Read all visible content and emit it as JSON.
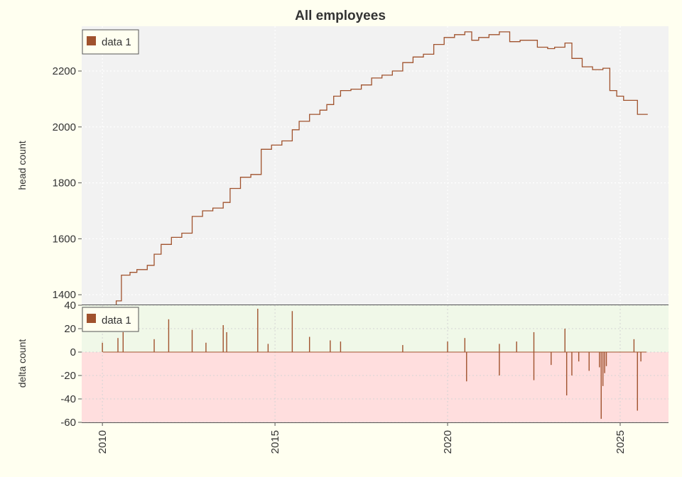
{
  "chart_data": {
    "type": "line",
    "title": "All employees",
    "x_ticks": [
      2010,
      2015,
      2020,
      2025
    ],
    "xlim": [
      2009.4,
      2026.4
    ],
    "colors": {
      "series": "#a0522d",
      "upper_bg": "#f2f2f2",
      "delta_pos_bg": "#f0f8e8",
      "delta_neg_bg": "#ffdede",
      "page_bg": "#fffff0",
      "grid": "#ffffff"
    },
    "grid": true,
    "panels": [
      {
        "id": "head",
        "ylabel": "head count",
        "ylim": [
          1365,
          2360
        ],
        "y_ticks": [
          1400,
          1600,
          1800,
          2000,
          2200
        ],
        "legend": {
          "label": "data 1",
          "position": "top-left"
        },
        "series": [
          {
            "style": "step",
            "points": [
              [
                2010.0,
                1355
              ],
              [
                2010.2,
                1362
              ],
              [
                2010.4,
                1378
              ],
              [
                2010.55,
                1470
              ],
              [
                2010.8,
                1480
              ],
              [
                2011.0,
                1490
              ],
              [
                2011.3,
                1505
              ],
              [
                2011.5,
                1545
              ],
              [
                2011.7,
                1580
              ],
              [
                2012.0,
                1605
              ],
              [
                2012.3,
                1620
              ],
              [
                2012.6,
                1680
              ],
              [
                2012.9,
                1700
              ],
              [
                2013.2,
                1710
              ],
              [
                2013.5,
                1730
              ],
              [
                2013.7,
                1780
              ],
              [
                2014.0,
                1820
              ],
              [
                2014.3,
                1830
              ],
              [
                2014.6,
                1920
              ],
              [
                2014.9,
                1935
              ],
              [
                2015.2,
                1950
              ],
              [
                2015.5,
                1990
              ],
              [
                2015.7,
                2020
              ],
              [
                2016.0,
                2045
              ],
              [
                2016.3,
                2060
              ],
              [
                2016.5,
                2080
              ],
              [
                2016.7,
                2110
              ],
              [
                2016.9,
                2130
              ],
              [
                2017.2,
                2135
              ],
              [
                2017.5,
                2150
              ],
              [
                2017.8,
                2175
              ],
              [
                2018.1,
                2185
              ],
              [
                2018.4,
                2200
              ],
              [
                2018.7,
                2230
              ],
              [
                2019.0,
                2250
              ],
              [
                2019.3,
                2260
              ],
              [
                2019.6,
                2295
              ],
              [
                2019.9,
                2320
              ],
              [
                2020.2,
                2330
              ],
              [
                2020.5,
                2340
              ],
              [
                2020.7,
                2310
              ],
              [
                2020.9,
                2320
              ],
              [
                2021.2,
                2330
              ],
              [
                2021.5,
                2340
              ],
              [
                2021.8,
                2305
              ],
              [
                2022.1,
                2310
              ],
              [
                2022.3,
                2310
              ],
              [
                2022.6,
                2285
              ],
              [
                2022.9,
                2280
              ],
              [
                2023.1,
                2285
              ],
              [
                2023.4,
                2300
              ],
              [
                2023.6,
                2245
              ],
              [
                2023.9,
                2215
              ],
              [
                2024.2,
                2205
              ],
              [
                2024.5,
                2210
              ],
              [
                2024.7,
                2130
              ],
              [
                2024.9,
                2110
              ],
              [
                2025.1,
                2095
              ],
              [
                2025.4,
                2095
              ],
              [
                2025.5,
                2045
              ],
              [
                2025.8,
                2045
              ]
            ]
          }
        ]
      },
      {
        "id": "delta",
        "ylabel": "delta count",
        "ylim": [
          -60,
          40
        ],
        "y_ticks": [
          -60,
          -40,
          -20,
          0,
          20,
          40
        ],
        "legend": {
          "label": "data 1",
          "position": "top-left"
        },
        "series": [
          {
            "style": "spike",
            "spikes": [
              [
                2010.0,
                8
              ],
              [
                2010.45,
                12
              ],
              [
                2010.6,
                17
              ],
              [
                2011.5,
                11
              ],
              [
                2011.92,
                28
              ],
              [
                2012.6,
                19
              ],
              [
                2013.0,
                8
              ],
              [
                2013.5,
                23
              ],
              [
                2013.6,
                17
              ],
              [
                2014.5,
                37
              ],
              [
                2014.8,
                7
              ],
              [
                2015.5,
                35
              ],
              [
                2016.0,
                13
              ],
              [
                2016.6,
                10
              ],
              [
                2016.9,
                9
              ],
              [
                2018.7,
                6
              ],
              [
                2020.0,
                9
              ],
              [
                2020.5,
                12
              ],
              [
                2020.55,
                -25
              ],
              [
                2021.5,
                7
              ],
              [
                2021.5,
                -20
              ],
              [
                2022.0,
                9
              ],
              [
                2022.5,
                17
              ],
              [
                2022.5,
                -24
              ],
              [
                2023.0,
                -11
              ],
              [
                2023.4,
                20
              ],
              [
                2023.45,
                -37
              ],
              [
                2023.6,
                -20
              ],
              [
                2023.8,
                -8
              ],
              [
                2024.1,
                -16
              ],
              [
                2024.4,
                -13
              ],
              [
                2024.45,
                -57
              ],
              [
                2024.5,
                -29
              ],
              [
                2024.55,
                -18
              ],
              [
                2024.6,
                -12
              ],
              [
                2025.4,
                11
              ],
              [
                2025.5,
                -50
              ],
              [
                2025.6,
                -8
              ]
            ]
          }
        ]
      }
    ]
  }
}
